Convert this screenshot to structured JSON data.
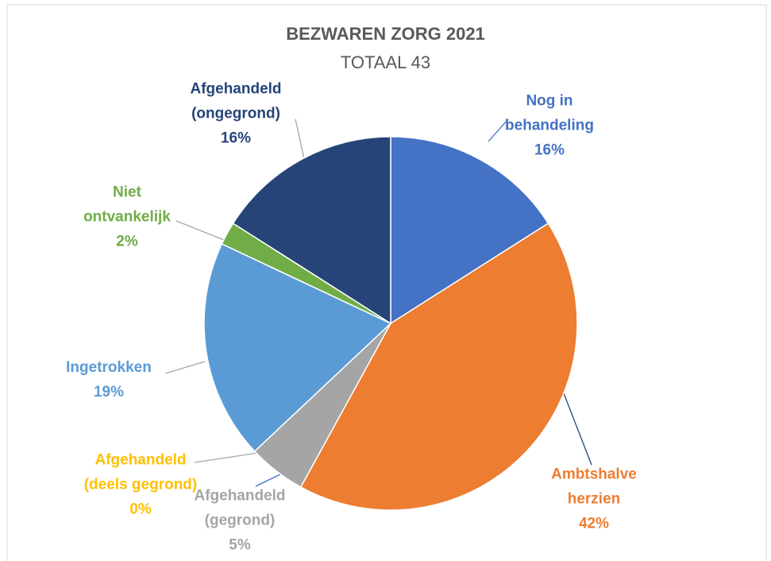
{
  "chart_data": {
    "type": "pie",
    "title": "BEZWAREN ZORG 2021",
    "subtitle": "TOTAAL 43",
    "categories": [
      "Nog in behandeling",
      "Ambtshalve herzien",
      "Afgehandeld (gegrond)",
      "Afgehandeld (deels gegrond)",
      "Ingetrokken",
      "Niet ontvankelijk",
      "Afgehandeld (ongegrond)"
    ],
    "values": [
      16,
      42,
      5,
      0,
      19,
      2,
      16
    ],
    "value_labels": [
      "16%",
      "42%",
      "5%",
      "0%",
      "19%",
      "2%",
      "16%"
    ],
    "colors": [
      "#4472c4",
      "#ed7d31",
      "#a5a5a5",
      "#ffc000",
      "#5b9bd5",
      "#70ad47",
      "#264478"
    ]
  }
}
